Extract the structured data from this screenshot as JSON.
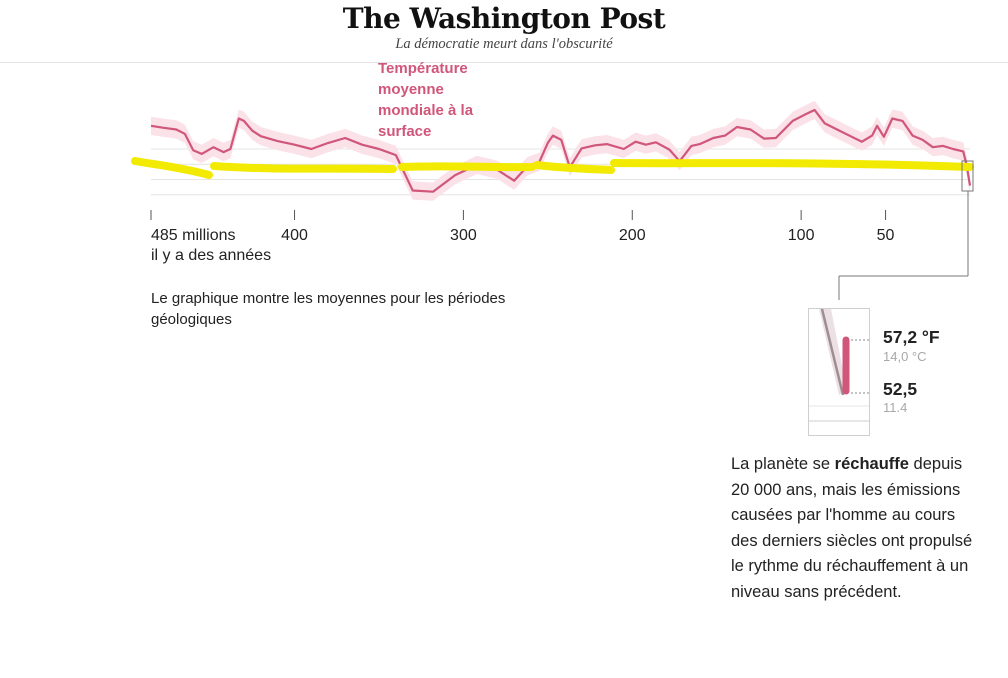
{
  "masthead": {
    "logo": "The Washington Post",
    "tagline": "La démocratie meurt dans l'obscurité"
  },
  "series_label": "Température moyenne mondiale à la surface",
  "footnote": "Le graphique montre les moyennes pour les périodes géologiques",
  "inset": {
    "high": {
      "f": "57,2 °F",
      "c": "14,0 °C"
    },
    "low": {
      "f": "52,5",
      "c": "11.4"
    }
  },
  "note": {
    "before": "La planète se ",
    "strong": "réchauffe",
    "after": " depuis 20 000 ans, mais les émissions causées par l'homme au cours des derniers siècles ont propulsé le rythme du réchauffement à un niveau sans précédent."
  },
  "colors": {
    "line": "#d0567a",
    "band": "#fbe1e8",
    "highlight": "#f2ea00",
    "gridline": "#e4e4e4"
  },
  "chart_data": {
    "type": "line",
    "title": "Température moyenne mondiale à la surface",
    "x_axis": {
      "direction": "reversed",
      "unit": "millions d'années",
      "range": [
        485,
        0
      ],
      "ticks": [
        {
          "value": 485,
          "label": "485 millions",
          "sublabel": "il y a des années"
        },
        {
          "value": 400,
          "label": "400"
        },
        {
          "value": 300,
          "label": "300"
        },
        {
          "value": 200,
          "label": "200"
        },
        {
          "value": 100,
          "label": "100"
        },
        {
          "value": 50,
          "label": "50"
        }
      ]
    },
    "grid": true,
    "series": [
      {
        "x": [
          485,
          478,
          470,
          465,
          460,
          455,
          448,
          442,
          438,
          433,
          430,
          425,
          420,
          410,
          400,
          390,
          380,
          370,
          360,
          350,
          340,
          330,
          318,
          305,
          292,
          280,
          270,
          262,
          255,
          250,
          247,
          242,
          237,
          230,
          222,
          215,
          205,
          198,
          192,
          186,
          178,
          172,
          165,
          160,
          152,
          145,
          138,
          130,
          122,
          115,
          105,
          98,
          92,
          86,
          78,
          70,
          64,
          58,
          55,
          51,
          46,
          40,
          34,
          28,
          22,
          16,
          10,
          4,
          2,
          0
        ],
        "values": [
          23.8,
          23.5,
          23.2,
          22.5,
          19.8,
          19.2,
          20.3,
          19.5,
          20.0,
          25.0,
          24.6,
          23.0,
          22.1,
          21.3,
          20.7,
          20.0,
          21.0,
          21.8,
          20.7,
          20.0,
          19.0,
          13.2,
          13.0,
          15.7,
          17.4,
          16.6,
          14.8,
          17.2,
          17.9,
          21.0,
          22.2,
          21.5,
          17.0,
          20.1,
          20.6,
          20.8,
          20.0,
          21.2,
          20.7,
          21.1,
          19.9,
          18.0,
          20.5,
          20.8,
          21.8,
          22.2,
          23.6,
          23.2,
          21.7,
          21.8,
          24.6,
          25.6,
          26.4,
          24.2,
          23.1,
          22.0,
          21.2,
          22.2,
          23.8,
          22.0,
          25.0,
          24.6,
          22.2,
          21.5,
          20.3,
          20.5,
          20.0,
          19.6,
          17.4,
          14.0
        ]
      }
    ]
  }
}
